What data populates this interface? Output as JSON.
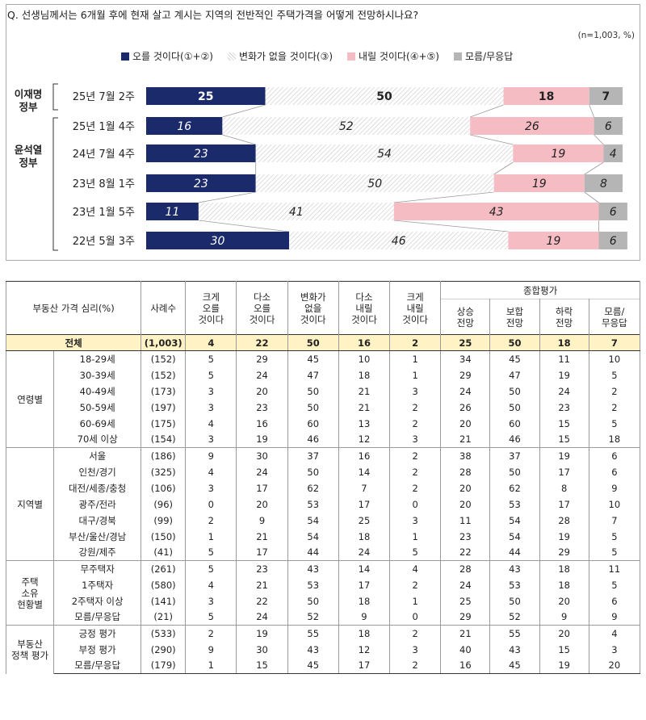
{
  "question": "Q. 선생님께서는 6개월 후에 현재 살고 계시는 지역의 전반적인 주택가격을 어떻게 전망하시나요?",
  "sample_note": "(n=1,003, %)",
  "colors": {
    "up": "#1b2a6b",
    "same": "#e6e6e6",
    "down": "#f6bcc4",
    "dk": "#b5b5b5"
  },
  "chart_data": {
    "type": "bar",
    "legend": [
      "오를 것이다(①+②)",
      "변화가 없을 것이다(③)",
      "내릴 것이다(④+⑤)",
      "모름/무응답"
    ],
    "groups": [
      {
        "label": "이재명 정부",
        "rows": [
          0
        ]
      },
      {
        "label": "윤석열 정부",
        "rows": [
          1,
          2,
          3,
          4,
          5
        ]
      }
    ],
    "categories": [
      "25년 7월 2주",
      "25년 1월 4주",
      "24년 7월 4주",
      "23년 8월 1주",
      "23년 1월 5주",
      "22년 5월 3주"
    ],
    "series": [
      {
        "name": "오를 것이다(①+②)",
        "values": [
          25,
          16,
          23,
          23,
          11,
          30
        ]
      },
      {
        "name": "변화가 없을 것이다(③)",
        "values": [
          50,
          52,
          54,
          50,
          41,
          46
        ]
      },
      {
        "name": "내릴 것이다(④+⑤)",
        "values": [
          18,
          26,
          19,
          19,
          43,
          19
        ]
      },
      {
        "name": "모름/무응답",
        "values": [
          7,
          6,
          4,
          8,
          6,
          6
        ]
      }
    ],
    "stacked": true,
    "orientation": "horizontal"
  },
  "table": {
    "h_main": "부동산 가격 심리(%)",
    "h_n": "사례수",
    "h_cols": [
      "크게\n오를\n것이다",
      "다소\n오를\n것이다",
      "변화가\n없을\n것이다",
      "다소\n내릴\n것이다",
      "크게\n내릴\n것이다"
    ],
    "h_summary": "종합평가",
    "h_sub": [
      "상승\n전망",
      "보합\n전망",
      "하락\n전망",
      "모름/\n무응답"
    ],
    "total": {
      "label": "전체",
      "n": "(1,003)",
      "v": [
        "4",
        "22",
        "50",
        "16",
        "2",
        "25",
        "50",
        "18",
        "7"
      ]
    },
    "groups": [
      {
        "name": "연령별",
        "rows": [
          {
            "label": "18-29세",
            "n": "(152)",
            "v": [
              "5",
              "29",
              "45",
              "10",
              "1",
              "34",
              "45",
              "11",
              "10"
            ]
          },
          {
            "label": "30-39세",
            "n": "(152)",
            "v": [
              "5",
              "24",
              "47",
              "18",
              "1",
              "29",
              "47",
              "19",
              "5"
            ]
          },
          {
            "label": "40-49세",
            "n": "(173)",
            "v": [
              "3",
              "20",
              "50",
              "21",
              "3",
              "24",
              "50",
              "24",
              "2"
            ]
          },
          {
            "label": "50-59세",
            "n": "(197)",
            "v": [
              "3",
              "23",
              "50",
              "21",
              "2",
              "26",
              "50",
              "23",
              "2"
            ]
          },
          {
            "label": "60-69세",
            "n": "(175)",
            "v": [
              "4",
              "16",
              "60",
              "13",
              "2",
              "20",
              "60",
              "15",
              "5"
            ]
          },
          {
            "label": "70세 이상",
            "n": "(154)",
            "v": [
              "3",
              "19",
              "46",
              "12",
              "3",
              "21",
              "46",
              "15",
              "18"
            ]
          }
        ]
      },
      {
        "name": "지역별",
        "rows": [
          {
            "label": "서울",
            "n": "(186)",
            "v": [
              "9",
              "30",
              "37",
              "16",
              "2",
              "38",
              "37",
              "19",
              "6"
            ]
          },
          {
            "label": "인천/경기",
            "n": "(325)",
            "v": [
              "4",
              "24",
              "50",
              "14",
              "2",
              "28",
              "50",
              "17",
              "6"
            ]
          },
          {
            "label": "대전/세종/충청",
            "n": "(106)",
            "v": [
              "3",
              "17",
              "62",
              "7",
              "2",
              "20",
              "62",
              "8",
              "9"
            ]
          },
          {
            "label": "광주/전라",
            "n": "(96)",
            "v": [
              "0",
              "20",
              "53",
              "17",
              "0",
              "20",
              "53",
              "17",
              "10"
            ]
          },
          {
            "label": "대구/경북",
            "n": "(99)",
            "v": [
              "2",
              "9",
              "54",
              "25",
              "3",
              "11",
              "54",
              "28",
              "7"
            ]
          },
          {
            "label": "부산/울산/경남",
            "n": "(150)",
            "v": [
              "1",
              "21",
              "54",
              "18",
              "1",
              "23",
              "54",
              "19",
              "5"
            ]
          },
          {
            "label": "강원/제주",
            "n": "(41)",
            "v": [
              "5",
              "17",
              "44",
              "24",
              "5",
              "22",
              "44",
              "29",
              "5"
            ]
          }
        ]
      },
      {
        "name": "주택\n소유\n현황별",
        "rows": [
          {
            "label": "무주택자",
            "n": "(261)",
            "v": [
              "5",
              "23",
              "43",
              "14",
              "4",
              "28",
              "43",
              "18",
              "11"
            ]
          },
          {
            "label": "1주택자",
            "n": "(580)",
            "v": [
              "4",
              "21",
              "53",
              "17",
              "2",
              "24",
              "53",
              "18",
              "5"
            ]
          },
          {
            "label": "2주택자 이상",
            "n": "(141)",
            "v": [
              "3",
              "22",
              "50",
              "18",
              "1",
              "25",
              "50",
              "20",
              "6"
            ]
          },
          {
            "label": "모름/무응답",
            "n": "(21)",
            "v": [
              "5",
              "24",
              "52",
              "9",
              "0",
              "29",
              "52",
              "9",
              "9"
            ]
          }
        ]
      },
      {
        "name": "부동산\n정책 평가",
        "rows": [
          {
            "label": "긍정 평가",
            "n": "(533)",
            "v": [
              "2",
              "19",
              "55",
              "18",
              "2",
              "21",
              "55",
              "20",
              "4"
            ]
          },
          {
            "label": "부정 평가",
            "n": "(290)",
            "v": [
              "9",
              "30",
              "43",
              "12",
              "3",
              "40",
              "43",
              "15",
              "3"
            ]
          },
          {
            "label": "모름/무응답",
            "n": "(179)",
            "v": [
              "1",
              "15",
              "45",
              "17",
              "2",
              "16",
              "45",
              "19",
              "20"
            ]
          }
        ]
      }
    ]
  }
}
